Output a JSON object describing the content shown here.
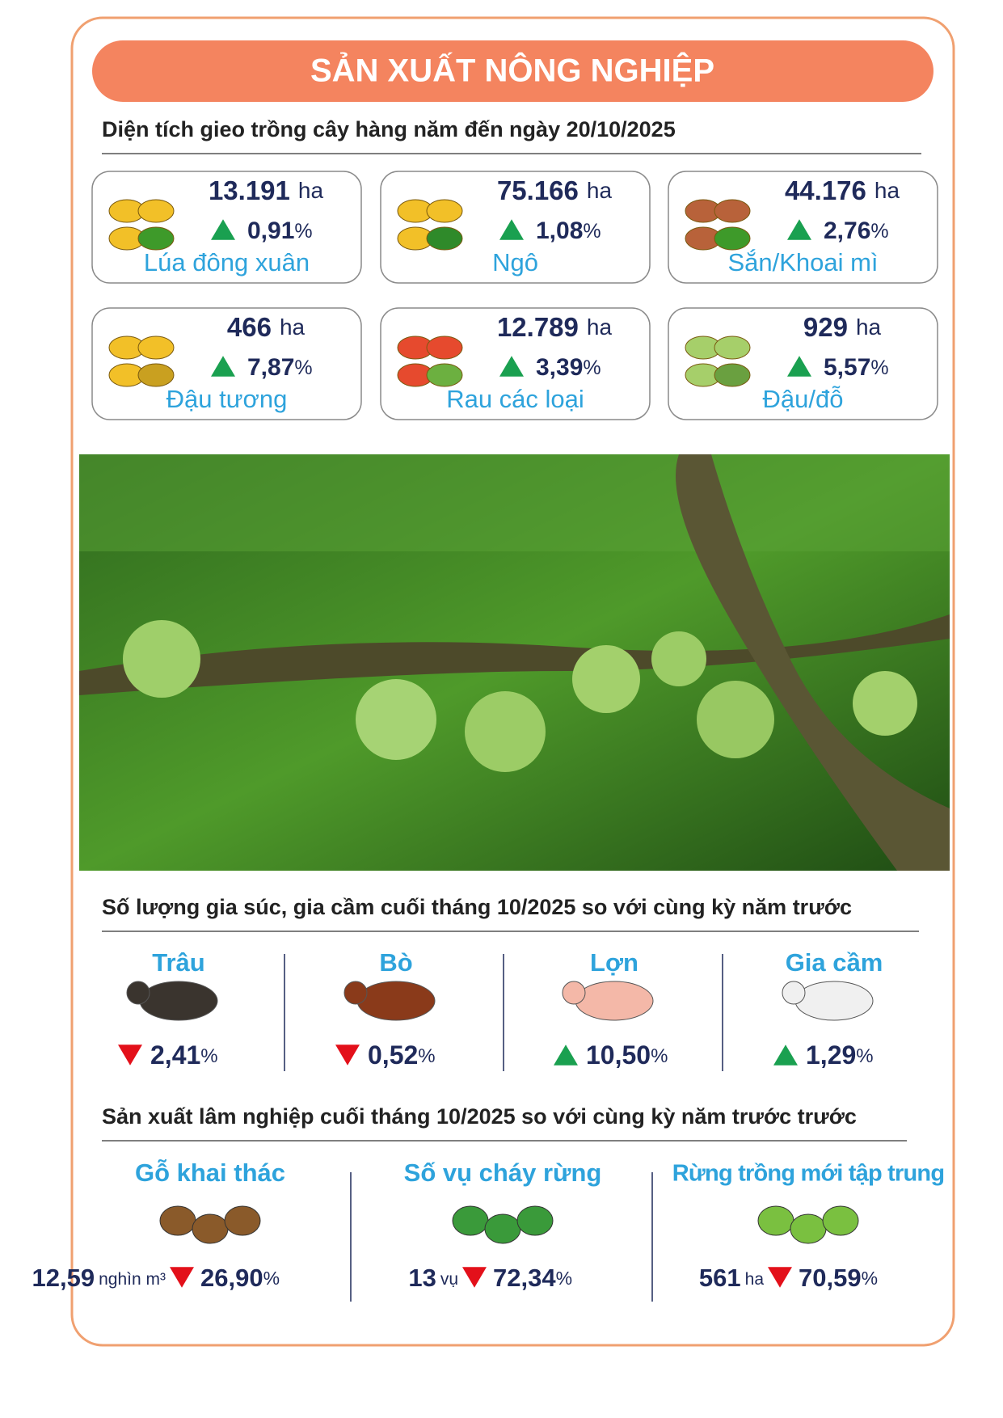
{
  "header": {
    "title": "SẢN XUẤT NÔNG NGHIỆP"
  },
  "crops": {
    "heading": "Diện tích gieo trồng cây hàng năm đến ngày 20/10/2025",
    "items": [
      {
        "value": "13.191",
        "unit": "ha",
        "direction": "up",
        "change": "0,91",
        "change_unit": "%",
        "label": "Lúa đông xuân"
      },
      {
        "value": "75.166",
        "unit": "ha",
        "direction": "up",
        "change": "1,08",
        "change_unit": "%",
        "label": "Ngô"
      },
      {
        "value": "44.176",
        "unit": "ha",
        "direction": "up",
        "change": "2,76",
        "change_unit": "%",
        "label": "Sắn/Khoai mì"
      },
      {
        "value": "466",
        "unit": "ha",
        "direction": "up",
        "change": "7,87",
        "change_unit": "%",
        "label": "Đậu tương"
      },
      {
        "value": "12.789",
        "unit": "ha",
        "direction": "up",
        "change": "3,39",
        "change_unit": "%",
        "label": "Rau các loại"
      },
      {
        "value": "929",
        "unit": "ha",
        "direction": "up",
        "change": "5,57",
        "change_unit": "%",
        "label": "Đậu/đỗ"
      }
    ]
  },
  "livestock": {
    "heading": "Số lượng gia súc, gia cầm cuối tháng 10/2025 so với cùng kỳ năm trước",
    "items": [
      {
        "label": "Trâu",
        "direction": "down",
        "change": "2,41",
        "change_unit": "%"
      },
      {
        "label": "Bò",
        "direction": "down",
        "change": "0,52",
        "change_unit": "%"
      },
      {
        "label": "Lợn",
        "direction": "up",
        "change": "10,50",
        "change_unit": "%"
      },
      {
        "label": "Gia cầm",
        "direction": "up",
        "change": "1,29",
        "change_unit": "%"
      }
    ]
  },
  "forestry": {
    "heading": "Sản xuất lâm nghiệp cuối tháng 10/2025 so với cùng kỳ năm trước trước",
    "items": [
      {
        "label": "Gỗ khai thác",
        "value": "12,59",
        "unit": "nghìn m³",
        "direction": "down",
        "change": "26,90",
        "change_unit": "%"
      },
      {
        "label": "Số vụ cháy rừng",
        "value": "13",
        "unit": "vụ",
        "direction": "down",
        "change": "72,34",
        "change_unit": "%"
      },
      {
        "label": "Rừng trồng mới tập trung",
        "value": "561",
        "unit": "ha",
        "direction": "down",
        "change": "70,59",
        "change_unit": "%"
      }
    ]
  }
}
